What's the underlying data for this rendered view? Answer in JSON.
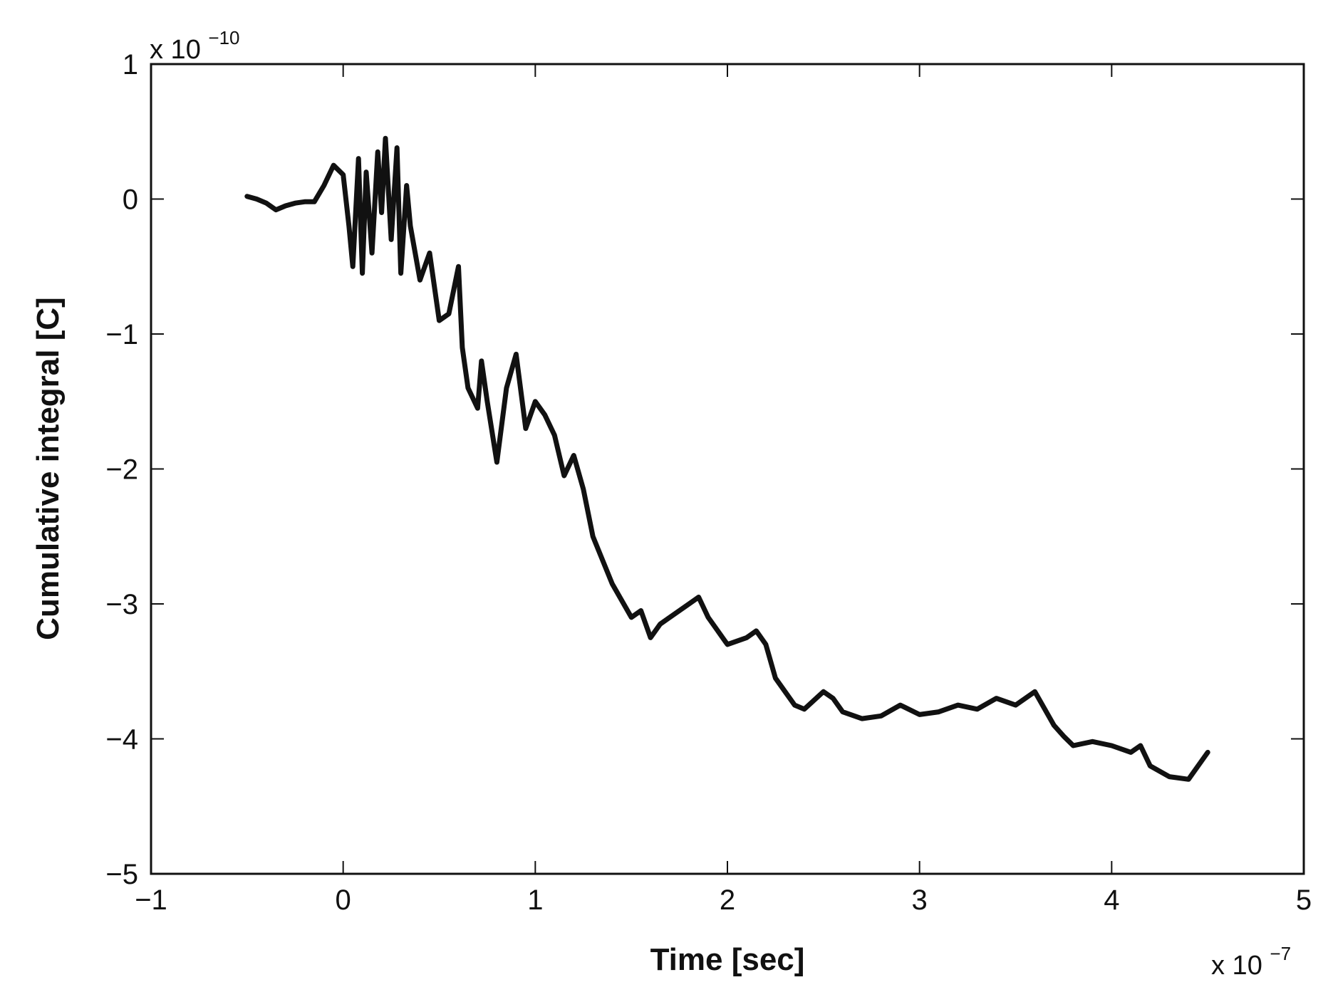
{
  "chart_data": {
    "type": "line",
    "title": "",
    "xlabel": "Time [sec]",
    "ylabel": "Cumulative integral [C]",
    "x_multiplier": {
      "base": "x 10",
      "exponent": "−7"
    },
    "y_multiplier": {
      "base": "x 10",
      "exponent": "−10"
    },
    "xlim": [
      -1,
      5
    ],
    "ylim": [
      -5,
      1
    ],
    "x_ticks": [
      -1,
      0,
      1,
      2,
      3,
      4,
      5
    ],
    "x_tick_labels": [
      "−1",
      "0",
      "1",
      "2",
      "3",
      "4",
      "5"
    ],
    "y_ticks": [
      -5,
      -4,
      -3,
      -2,
      -1,
      0,
      1
    ],
    "y_tick_labels": [
      "−5",
      "−4",
      "−3",
      "−2",
      "−1",
      "0",
      "1"
    ],
    "grid": false,
    "line_color": "#111111",
    "series": [
      {
        "x": [
          -0.5,
          -0.45,
          -0.4,
          -0.35,
          -0.3,
          -0.25,
          -0.2,
          -0.15,
          -0.1,
          -0.05,
          0.0,
          0.03,
          0.05,
          0.08,
          0.1,
          0.12,
          0.15,
          0.18,
          0.2,
          0.22,
          0.25,
          0.28,
          0.3,
          0.33,
          0.35,
          0.4,
          0.45,
          0.5,
          0.55,
          0.6,
          0.62,
          0.65,
          0.7,
          0.72,
          0.75,
          0.8,
          0.85,
          0.9,
          0.95,
          1.0,
          1.05,
          1.1,
          1.15,
          1.2,
          1.25,
          1.3,
          1.4,
          1.5,
          1.55,
          1.6,
          1.65,
          1.7,
          1.8,
          1.85,
          1.9,
          1.95,
          2.0,
          2.1,
          2.15,
          2.2,
          2.25,
          2.3,
          2.35,
          2.4,
          2.5,
          2.55,
          2.6,
          2.7,
          2.8,
          2.9,
          3.0,
          3.1,
          3.2,
          3.3,
          3.4,
          3.5,
          3.6,
          3.7,
          3.75,
          3.8,
          3.9,
          4.0,
          4.1,
          4.15,
          4.2,
          4.3,
          4.4,
          4.5
        ],
        "y": [
          0.02,
          0.0,
          -0.03,
          -0.08,
          -0.05,
          -0.03,
          -0.02,
          -0.02,
          0.1,
          0.25,
          0.18,
          -0.2,
          -0.5,
          0.3,
          -0.55,
          0.2,
          -0.4,
          0.35,
          -0.1,
          0.45,
          -0.3,
          0.38,
          -0.55,
          0.1,
          -0.2,
          -0.6,
          -0.4,
          -0.9,
          -0.85,
          -0.5,
          -1.1,
          -1.4,
          -1.55,
          -1.2,
          -1.5,
          -1.95,
          -1.4,
          -1.15,
          -1.7,
          -1.5,
          -1.6,
          -1.75,
          -2.05,
          -1.9,
          -2.15,
          -2.5,
          -2.85,
          -3.1,
          -3.05,
          -3.25,
          -3.15,
          -3.1,
          -3.0,
          -2.95,
          -3.1,
          -3.2,
          -3.3,
          -3.25,
          -3.2,
          -3.3,
          -3.55,
          -3.65,
          -3.75,
          -3.78,
          -3.65,
          -3.7,
          -3.8,
          -3.85,
          -3.83,
          -3.75,
          -3.82,
          -3.8,
          -3.75,
          -3.78,
          -3.7,
          -3.75,
          -3.65,
          -3.9,
          -3.98,
          -4.05,
          -4.02,
          -4.05,
          -4.1,
          -4.05,
          -4.2,
          -4.28,
          -4.3,
          -4.1
        ]
      }
    ]
  }
}
